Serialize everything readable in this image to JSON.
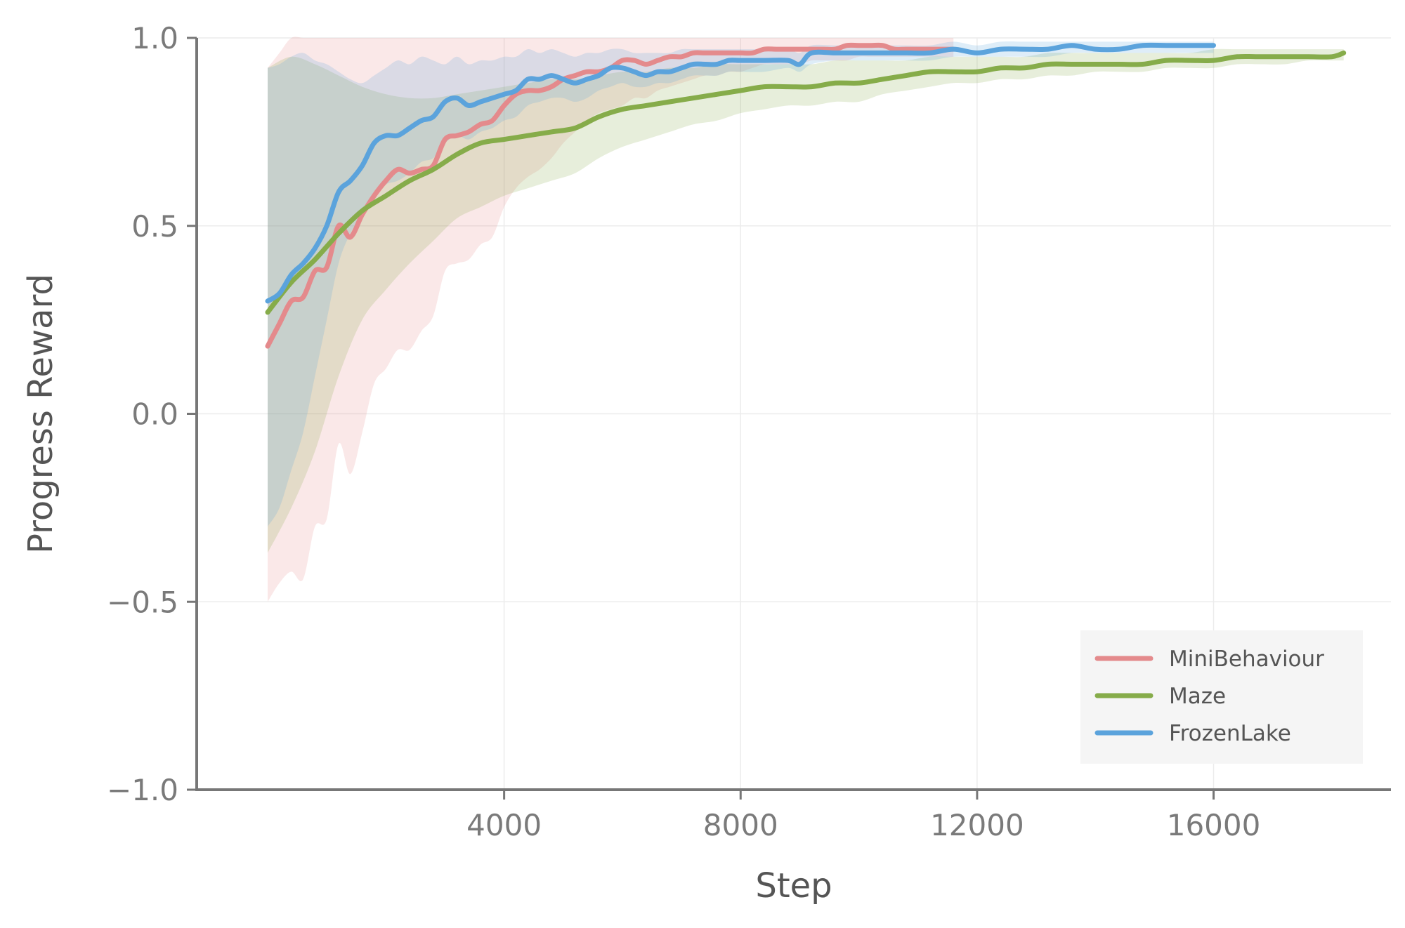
{
  "chart_data": {
    "type": "line",
    "title": "",
    "xlabel": "Step",
    "ylabel": "Progress Reward",
    "xlim": [
      -1200,
      19000
    ],
    "ylim": [
      -1.0,
      1.0
    ],
    "xticks": [
      4000,
      8000,
      12000,
      16000
    ],
    "xtick_labels": [
      "4000",
      "8000",
      "12000",
      "16000"
    ],
    "yticks": [
      -1.0,
      -0.5,
      0.0,
      0.5,
      1.0
    ],
    "ytick_labels": [
      "−1.0",
      "−0.5",
      "0.0",
      "0.5",
      "1.0"
    ],
    "grid": true,
    "legend_position": "bottom-right",
    "series": [
      {
        "name": "MiniBehaviour",
        "color": "#e48a8c",
        "x": [
          0,
          200,
          400,
          600,
          800,
          1000,
          1200,
          1400,
          1600,
          1800,
          2000,
          2200,
          2400,
          2600,
          2800,
          3000,
          3200,
          3400,
          3600,
          3800,
          4000,
          4200,
          4400,
          4600,
          4800,
          5000,
          5200,
          5400,
          5600,
          5800,
          6000,
          6200,
          6400,
          6600,
          6800,
          7000,
          7200,
          7400,
          7600,
          7800,
          8000,
          8200,
          8400,
          8600,
          8800,
          9000,
          9200,
          9400,
          9600,
          9800,
          10000,
          10200,
          10400,
          10600,
          10800,
          11000,
          11200,
          11400,
          11600
        ],
        "values": [
          0.18,
          0.24,
          0.3,
          0.31,
          0.38,
          0.39,
          0.5,
          0.47,
          0.53,
          0.58,
          0.62,
          0.65,
          0.64,
          0.65,
          0.66,
          0.73,
          0.74,
          0.75,
          0.77,
          0.78,
          0.82,
          0.85,
          0.86,
          0.86,
          0.87,
          0.89,
          0.9,
          0.91,
          0.91,
          0.92,
          0.94,
          0.94,
          0.93,
          0.94,
          0.95,
          0.95,
          0.96,
          0.96,
          0.96,
          0.96,
          0.96,
          0.96,
          0.97,
          0.97,
          0.97,
          0.97,
          0.97,
          0.97,
          0.97,
          0.98,
          0.98,
          0.98,
          0.98,
          0.97,
          0.97,
          0.97,
          0.97,
          0.97,
          0.97
        ],
        "lower": [
          -0.5,
          -0.45,
          -0.42,
          -0.44,
          -0.3,
          -0.28,
          -0.08,
          -0.16,
          -0.05,
          0.08,
          0.12,
          0.17,
          0.17,
          0.22,
          0.26,
          0.38,
          0.4,
          0.41,
          0.45,
          0.47,
          0.55,
          0.6,
          0.63,
          0.65,
          0.68,
          0.72,
          0.75,
          0.78,
          0.8,
          0.81,
          0.82,
          0.84,
          0.84,
          0.86,
          0.87,
          0.88,
          0.89,
          0.9,
          0.9,
          0.91,
          0.91,
          0.92,
          0.93,
          0.93,
          0.93,
          0.93,
          0.94,
          0.94,
          0.94,
          0.94,
          0.95,
          0.95,
          0.95,
          0.95,
          0.95,
          0.95,
          0.95,
          0.95,
          0.95
        ],
        "upper": [
          0.92,
          0.96,
          1.0,
          1.0,
          1.0,
          1.0,
          1.0,
          1.0,
          1.0,
          1.0,
          1.0,
          1.0,
          1.0,
          1.0,
          1.0,
          1.0,
          1.0,
          1.0,
          1.0,
          1.0,
          1.0,
          1.0,
          1.0,
          1.0,
          1.0,
          1.0,
          1.0,
          1.0,
          1.0,
          1.0,
          1.0,
          1.0,
          1.0,
          1.0,
          1.0,
          1.0,
          1.0,
          1.0,
          1.0,
          1.0,
          1.0,
          1.0,
          1.0,
          1.0,
          1.0,
          1.0,
          1.0,
          1.0,
          1.0,
          1.0,
          1.0,
          1.0,
          1.0,
          1.0,
          1.0,
          1.0,
          1.0,
          1.0,
          1.0
        ]
      },
      {
        "name": "Maze",
        "color": "#86ac4a",
        "x": [
          0,
          400,
          800,
          1200,
          1600,
          2000,
          2400,
          2800,
          3200,
          3600,
          4000,
          4400,
          4800,
          5200,
          5600,
          6000,
          6400,
          6800,
          7200,
          7600,
          8000,
          8400,
          8800,
          9200,
          9600,
          10000,
          10400,
          10800,
          11200,
          11600,
          12000,
          12400,
          12800,
          13200,
          13600,
          14000,
          14400,
          14800,
          15200,
          15600,
          16000,
          16400,
          16800,
          17200,
          17600,
          18000,
          18200
        ],
        "values": [
          0.27,
          0.35,
          0.41,
          0.48,
          0.54,
          0.58,
          0.62,
          0.65,
          0.69,
          0.72,
          0.73,
          0.74,
          0.75,
          0.76,
          0.79,
          0.81,
          0.82,
          0.83,
          0.84,
          0.85,
          0.86,
          0.87,
          0.87,
          0.87,
          0.88,
          0.88,
          0.89,
          0.9,
          0.91,
          0.91,
          0.91,
          0.92,
          0.92,
          0.93,
          0.93,
          0.93,
          0.93,
          0.93,
          0.94,
          0.94,
          0.94,
          0.95,
          0.95,
          0.95,
          0.95,
          0.95,
          0.96
        ],
        "lower": [
          -0.37,
          -0.25,
          -0.1,
          0.1,
          0.25,
          0.33,
          0.4,
          0.46,
          0.52,
          0.55,
          0.58,
          0.6,
          0.62,
          0.64,
          0.68,
          0.71,
          0.73,
          0.75,
          0.77,
          0.78,
          0.8,
          0.81,
          0.82,
          0.82,
          0.83,
          0.83,
          0.85,
          0.86,
          0.87,
          0.88,
          0.88,
          0.89,
          0.89,
          0.9,
          0.9,
          0.91,
          0.91,
          0.91,
          0.92,
          0.92,
          0.92,
          0.93,
          0.93,
          0.93,
          0.94,
          0.94,
          0.94
        ],
        "upper": [
          0.92,
          0.95,
          0.93,
          0.9,
          0.87,
          0.85,
          0.84,
          0.84,
          0.85,
          0.86,
          0.87,
          0.88,
          0.89,
          0.89,
          0.9,
          0.91,
          0.91,
          0.92,
          0.92,
          0.93,
          0.93,
          0.93,
          0.93,
          0.93,
          0.94,
          0.94,
          0.94,
          0.94,
          0.95,
          0.95,
          0.95,
          0.95,
          0.95,
          0.96,
          0.96,
          0.96,
          0.96,
          0.96,
          0.96,
          0.96,
          0.97,
          0.97,
          0.97,
          0.97,
          0.97,
          0.97,
          0.97
        ]
      },
      {
        "name": "FrozenLake",
        "color": "#5ba3dc",
        "x": [
          0,
          200,
          400,
          600,
          800,
          1000,
          1200,
          1400,
          1600,
          1800,
          2000,
          2200,
          2400,
          2600,
          2800,
          3000,
          3200,
          3400,
          3600,
          3800,
          4000,
          4200,
          4400,
          4600,
          4800,
          5000,
          5200,
          5400,
          5600,
          5800,
          6000,
          6200,
          6400,
          6600,
          6800,
          7000,
          7200,
          7400,
          7600,
          7800,
          8000,
          8400,
          8800,
          9000,
          9200,
          9600,
          10000,
          10400,
          10800,
          11200,
          11600,
          12000,
          12400,
          12800,
          13200,
          13600,
          14000,
          14400,
          14800,
          15200,
          15600,
          16000
        ],
        "values": [
          0.3,
          0.32,
          0.37,
          0.4,
          0.44,
          0.5,
          0.59,
          0.62,
          0.66,
          0.72,
          0.74,
          0.74,
          0.76,
          0.78,
          0.79,
          0.83,
          0.84,
          0.82,
          0.83,
          0.84,
          0.85,
          0.86,
          0.89,
          0.89,
          0.9,
          0.89,
          0.88,
          0.89,
          0.9,
          0.92,
          0.92,
          0.91,
          0.9,
          0.91,
          0.91,
          0.92,
          0.93,
          0.93,
          0.93,
          0.94,
          0.94,
          0.94,
          0.94,
          0.93,
          0.96,
          0.96,
          0.96,
          0.96,
          0.96,
          0.96,
          0.97,
          0.96,
          0.97,
          0.97,
          0.97,
          0.98,
          0.97,
          0.97,
          0.98,
          0.98,
          0.98,
          0.98
        ],
        "lower": [
          -0.3,
          -0.25,
          -0.15,
          -0.05,
          0.1,
          0.25,
          0.4,
          0.48,
          0.53,
          0.58,
          0.61,
          0.62,
          0.64,
          0.67,
          0.68,
          0.72,
          0.74,
          0.73,
          0.75,
          0.76,
          0.78,
          0.79,
          0.82,
          0.83,
          0.84,
          0.84,
          0.83,
          0.84,
          0.86,
          0.87,
          0.88,
          0.87,
          0.87,
          0.88,
          0.88,
          0.89,
          0.9,
          0.9,
          0.9,
          0.91,
          0.91,
          0.91,
          0.92,
          0.91,
          0.93,
          0.94,
          0.94,
          0.94,
          0.94,
          0.94,
          0.95,
          0.95,
          0.95,
          0.95,
          0.95,
          0.96,
          0.96,
          0.96,
          0.96,
          0.96,
          0.96,
          0.96
        ],
        "upper": [
          0.92,
          0.93,
          0.95,
          0.96,
          0.94,
          0.93,
          0.91,
          0.89,
          0.88,
          0.9,
          0.92,
          0.94,
          0.93,
          0.95,
          0.94,
          0.93,
          0.95,
          0.93,
          0.94,
          0.94,
          0.95,
          0.95,
          0.97,
          0.96,
          0.97,
          0.96,
          0.95,
          0.96,
          0.96,
          0.97,
          0.97,
          0.96,
          0.96,
          0.96,
          0.96,
          0.97,
          0.97,
          0.97,
          0.97,
          0.97,
          0.97,
          0.97,
          0.97,
          0.96,
          0.98,
          0.98,
          0.98,
          0.98,
          0.98,
          0.98,
          0.99,
          0.98,
          0.99,
          0.99,
          0.99,
          0.99,
          0.99,
          0.99,
          0.99,
          0.99,
          0.99,
          0.99
        ]
      }
    ]
  }
}
